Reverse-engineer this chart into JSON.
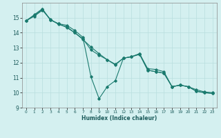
{
  "xlabel": "Humidex (Indice chaleur)",
  "ylabel": "",
  "background_color": "#d4f0f0",
  "grid_color": "#b8dede",
  "line_color": "#1a7a6e",
  "xlim": [
    -0.5,
    23.5
  ],
  "ylim": [
    9,
    16
  ],
  "yticks": [
    9,
    10,
    11,
    12,
    13,
    14,
    15
  ],
  "xticks": [
    0,
    1,
    2,
    3,
    4,
    5,
    6,
    7,
    8,
    9,
    10,
    11,
    12,
    13,
    14,
    15,
    16,
    17,
    18,
    19,
    20,
    21,
    22,
    23
  ],
  "series": [
    [
      14.8,
      15.2,
      15.6,
      14.85,
      14.6,
      14.5,
      14.15,
      13.7,
      11.05,
      9.6,
      10.4,
      10.8,
      12.3,
      12.4,
      12.6,
      11.6,
      11.55,
      11.4,
      10.4,
      10.5,
      10.4,
      10.2,
      10.05,
      10.0
    ],
    [
      14.8,
      15.1,
      15.5,
      14.9,
      14.55,
      14.4,
      14.0,
      13.55,
      13.05,
      12.6,
      12.2,
      11.9,
      12.3,
      12.4,
      12.6,
      11.5,
      11.4,
      11.3,
      10.4,
      10.5,
      10.4,
      10.1,
      10.0,
      9.95
    ],
    [
      14.8,
      15.15,
      15.55,
      14.85,
      14.6,
      14.35,
      14.0,
      13.6,
      12.85,
      12.5,
      12.2,
      11.85,
      12.3,
      12.4,
      12.55,
      11.5,
      11.4,
      11.3,
      10.4,
      10.5,
      10.4,
      10.1,
      10.0,
      9.95
    ]
  ]
}
